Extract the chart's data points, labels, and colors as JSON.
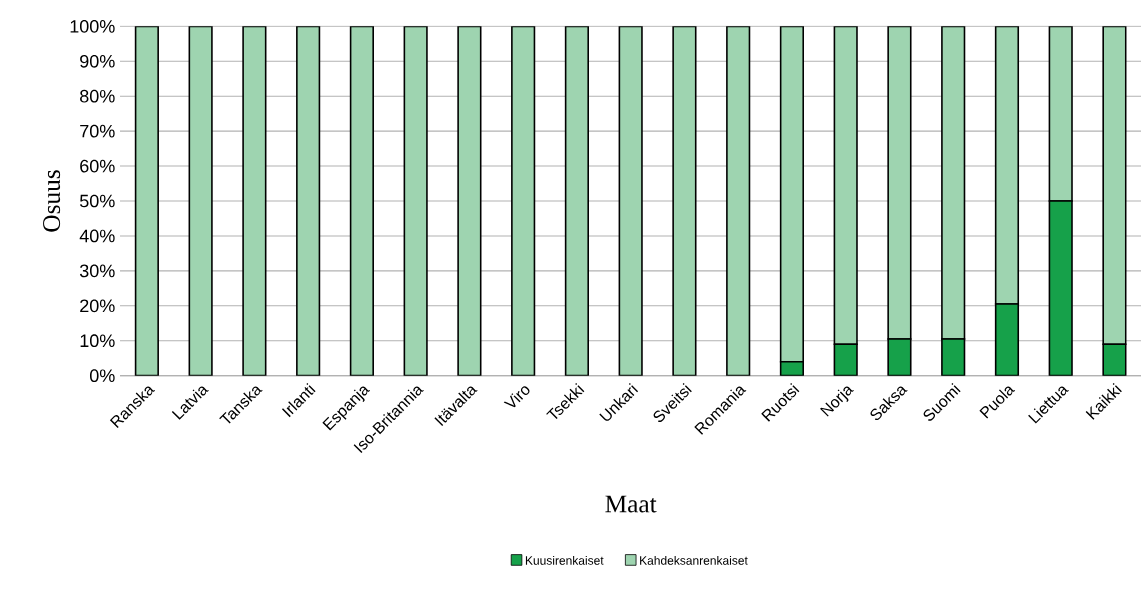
{
  "chart_data": {
    "type": "bar",
    "stacked": true,
    "xlabel": "Maat",
    "ylabel": "Osuus",
    "categories": [
      "Ranska",
      "Latvia",
      "Tanska",
      "Irlanti",
      "Espanja",
      "Iso-Britannia",
      "Itävalta",
      "Viro",
      "Tsekki",
      "Unkari",
      "Sveitsi",
      "Romania",
      "Ruotsi",
      "Norja",
      "Saksa",
      "Suomi",
      "Puola",
      "Liettua",
      "Kaikki"
    ],
    "series": [
      {
        "name": "Kuusirenkaiset",
        "color": "#16a14a",
        "values": [
          0,
          0,
          0,
          0,
          0,
          0,
          0,
          0,
          0,
          0,
          0,
          0,
          4,
          9,
          10.5,
          10.5,
          20.5,
          50,
          9
        ]
      },
      {
        "name": "Kahdeksanrenkaiset",
        "color": "#9ed4b0",
        "values": [
          100,
          100,
          100,
          100,
          100,
          100,
          100,
          100,
          100,
          100,
          100,
          100,
          96,
          91,
          89.5,
          89.5,
          79.5,
          50,
          91
        ]
      }
    ],
    "ylim": [
      0,
      100
    ],
    "yticks": [
      {
        "value": 0,
        "label": "0%"
      },
      {
        "value": 10,
        "label": "10%"
      },
      {
        "value": 20,
        "label": "20%"
      },
      {
        "value": 30,
        "label": "30%"
      },
      {
        "value": 40,
        "label": "40%"
      },
      {
        "value": 50,
        "label": "50%"
      },
      {
        "value": 60,
        "label": "60%"
      },
      {
        "value": 70,
        "label": "70%"
      },
      {
        "value": 80,
        "label": "80%"
      },
      {
        "value": 90,
        "label": "90%"
      },
      {
        "value": 100,
        "label": "100%"
      }
    ],
    "grid": "y",
    "legend": "bottom"
  }
}
